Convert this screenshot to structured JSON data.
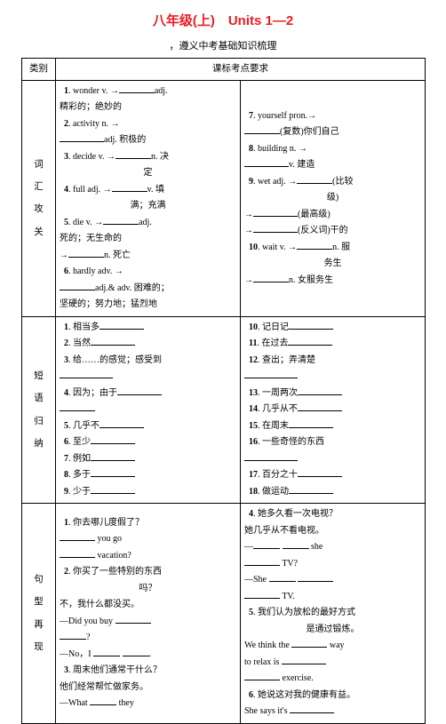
{
  "header": {
    "title": "八年级(上)　Units 1—2",
    "subtitle": "，遵义中考基础知识梳理"
  },
  "table": {
    "col_headers": [
      "类别",
      "课标考点要求"
    ],
    "sections": [
      {
        "category": "词汇攻关",
        "left_lines": [
          {
            "t": "num",
            "n": "1",
            "body": ". wonder v. →",
            "blank": 40,
            "tail": "adj."
          },
          {
            "t": "plain",
            "body": "精彩的；绝妙的"
          },
          {
            "t": "num",
            "n": "2",
            "body": ". activity n. →"
          },
          {
            "t": "blankline",
            "blank": 50,
            "tail": "adj. 积极的"
          },
          {
            "t": "num",
            "n": "3",
            "body": ". decide v. →",
            "blank": 40,
            "tail": "n. 决"
          },
          {
            "t": "center",
            "body": "定"
          },
          {
            "t": "num",
            "n": "4",
            "body": ". full adj. →",
            "blank": 40,
            "tail": "v. 填"
          },
          {
            "t": "center",
            "body": "满；充满"
          },
          {
            "t": "num",
            "n": "5",
            "body": ". die v. →",
            "blank": 40,
            "tail": "adj."
          },
          {
            "t": "plain",
            "body": "死的；无生命的"
          },
          {
            "t": "plain",
            "body": "→",
            "blank": 40,
            "tail": "n. 死亡"
          },
          {
            "t": "num",
            "n": "6",
            "body": ". hardly adv. →"
          },
          {
            "t": "blankline",
            "blank": 40,
            "tail": "adj.& adv. 困难的；"
          },
          {
            "t": "plain",
            "body": "坚硬的；努力地；猛烈地"
          }
        ],
        "right_lines": [
          {
            "t": "num",
            "n": "7",
            "body": ". yourself pron.→"
          },
          {
            "t": "blankline",
            "blank": 40,
            "tail": "(复数)你们自己"
          },
          {
            "t": "num",
            "n": "8",
            "body": ". building n. →"
          },
          {
            "t": "blankline",
            "blank": 50,
            "tail": "v. 建造"
          },
          {
            "t": "num",
            "n": "9",
            "body": ". wet adj. →",
            "blank": 40,
            "tail": "(比较"
          },
          {
            "t": "center",
            "body": "级)"
          },
          {
            "t": "plain",
            "body": "→",
            "blank": 50,
            "tail": "(最高级)"
          },
          {
            "t": "plain",
            "body": "→",
            "blank": 50,
            "tail": "(反义词)干的"
          },
          {
            "t": "num",
            "n": "10",
            "body": ". wait v. →",
            "blank": 40,
            "tail": "n. 服"
          },
          {
            "t": "center",
            "body": "务生"
          },
          {
            "t": "plain",
            "body": "→",
            "blank": 40,
            "tail": "n. 女服务生"
          }
        ]
      },
      {
        "category": "短语归纳",
        "left_lines": [
          {
            "t": "num",
            "n": "1",
            "body": ". 相当多",
            "blank": 50
          },
          {
            "t": "num",
            "n": "2",
            "body": ". 当然",
            "blank": 50
          },
          {
            "t": "num",
            "n": "3",
            "body": ". 给……的感觉；感受到"
          },
          {
            "t": "blankline",
            "blank": 60
          },
          {
            "t": "num",
            "n": "4",
            "body": ". 因为；由于",
            "blank": 50
          },
          {
            "t": "blankline",
            "blank": 40
          },
          {
            "t": "num",
            "n": "5",
            "body": ". 几乎不",
            "blank": 50
          },
          {
            "t": "num",
            "n": "6",
            "body": ". 至少",
            "blank": 50
          },
          {
            "t": "num",
            "n": "7",
            "body": ". 例如",
            "blank": 50
          },
          {
            "t": "num",
            "n": "8",
            "body": ". 多于",
            "blank": 50
          },
          {
            "t": "num",
            "n": "9",
            "body": ". 少于",
            "blank": 50
          }
        ],
        "right_lines": [
          {
            "t": "num",
            "n": "10",
            "body": ". 记日记",
            "blank": 50
          },
          {
            "t": "num",
            "n": "11",
            "body": ". 在过去",
            "blank": 50
          },
          {
            "t": "num",
            "n": "12",
            "body": ". 查出；弄清楚"
          },
          {
            "t": "blankline",
            "blank": 60
          },
          {
            "t": "num",
            "n": "13",
            "body": ". 一周两次",
            "blank": 50
          },
          {
            "t": "num",
            "n": "14",
            "body": ". 几乎从不",
            "blank": 50
          },
          {
            "t": "num",
            "n": "15",
            "body": ". 在周末",
            "blank": 50
          },
          {
            "t": "num",
            "n": "16",
            "body": ". 一些奇怪的东西"
          },
          {
            "t": "blankline",
            "blank": 60
          },
          {
            "t": "num",
            "n": "17",
            "body": ". 百分之十",
            "blank": 50
          },
          {
            "t": "num",
            "n": "18",
            "body": ". 做运动",
            "blank": 50
          }
        ]
      },
      {
        "category": "句型再现",
        "left_lines": [
          {
            "t": "num",
            "n": "1",
            "body": ". 你去哪儿度假了？"
          },
          {
            "t": "plain",
            "body": "",
            "blank": 40,
            "tail": " you go"
          },
          {
            "t": "plain",
            "body": "",
            "blank": 40,
            "tail": " vacation?"
          },
          {
            "t": "num",
            "n": "2",
            "body": ". 你买了一些特别的东西"
          },
          {
            "t": "center",
            "body": "吗？"
          },
          {
            "t": "plain",
            "body": "不，我什么都没买。"
          },
          {
            "t": "plain",
            "body": "—Did you buy ",
            "blank": 40
          },
          {
            "t": "blankline",
            "blank": 30,
            "tail": "?"
          },
          {
            "t": "plain",
            "body": "—No，I ",
            "blank": 30,
            "tail": " ",
            "blank2": 30,
            "tail2": "."
          },
          {
            "t": "num",
            "n": "3",
            "body": ". 周末他们通常干什么？"
          },
          {
            "t": "plain",
            "body": "他们经常帮忙做家务。"
          },
          {
            "t": "plain",
            "body": "—What ",
            "blank": 30,
            "tail": " they"
          }
        ],
        "right_lines": [
          {
            "t": "num",
            "n": "4",
            "body": ". 她多久看一次电视？"
          },
          {
            "t": "plain",
            "body": "她几乎从不看电视。"
          },
          {
            "t": "plain",
            "body": "—",
            "blank": 30,
            "tail": " ",
            "blank2": 30,
            "tail2": " she"
          },
          {
            "t": "plain",
            "body": "",
            "blank": 40,
            "tail": " TV?"
          },
          {
            "t": "plain",
            "body": "—She ",
            "blank": 30,
            "tail": " ",
            "blank2": 40
          },
          {
            "t": "plain",
            "body": "",
            "blank": 40,
            "tail": " TV."
          },
          {
            "t": "num",
            "n": "5",
            "body": ". 我们认为放松的最好方式"
          },
          {
            "t": "center",
            "body": "是通过锻炼。"
          },
          {
            "t": "plain",
            "body": "We think the ",
            "blank": 40,
            "tail": " way"
          },
          {
            "t": "plain",
            "body": "to relax is ",
            "blank": 50
          },
          {
            "t": "plain",
            "body": "",
            "blank": 40,
            "tail": " exercise."
          },
          {
            "t": "num",
            "n": "6",
            "body": ". 她说这对我的健康有益。"
          },
          {
            "t": "plain",
            "body": "She says it's ",
            "blank": 50
          }
        ]
      }
    ]
  }
}
